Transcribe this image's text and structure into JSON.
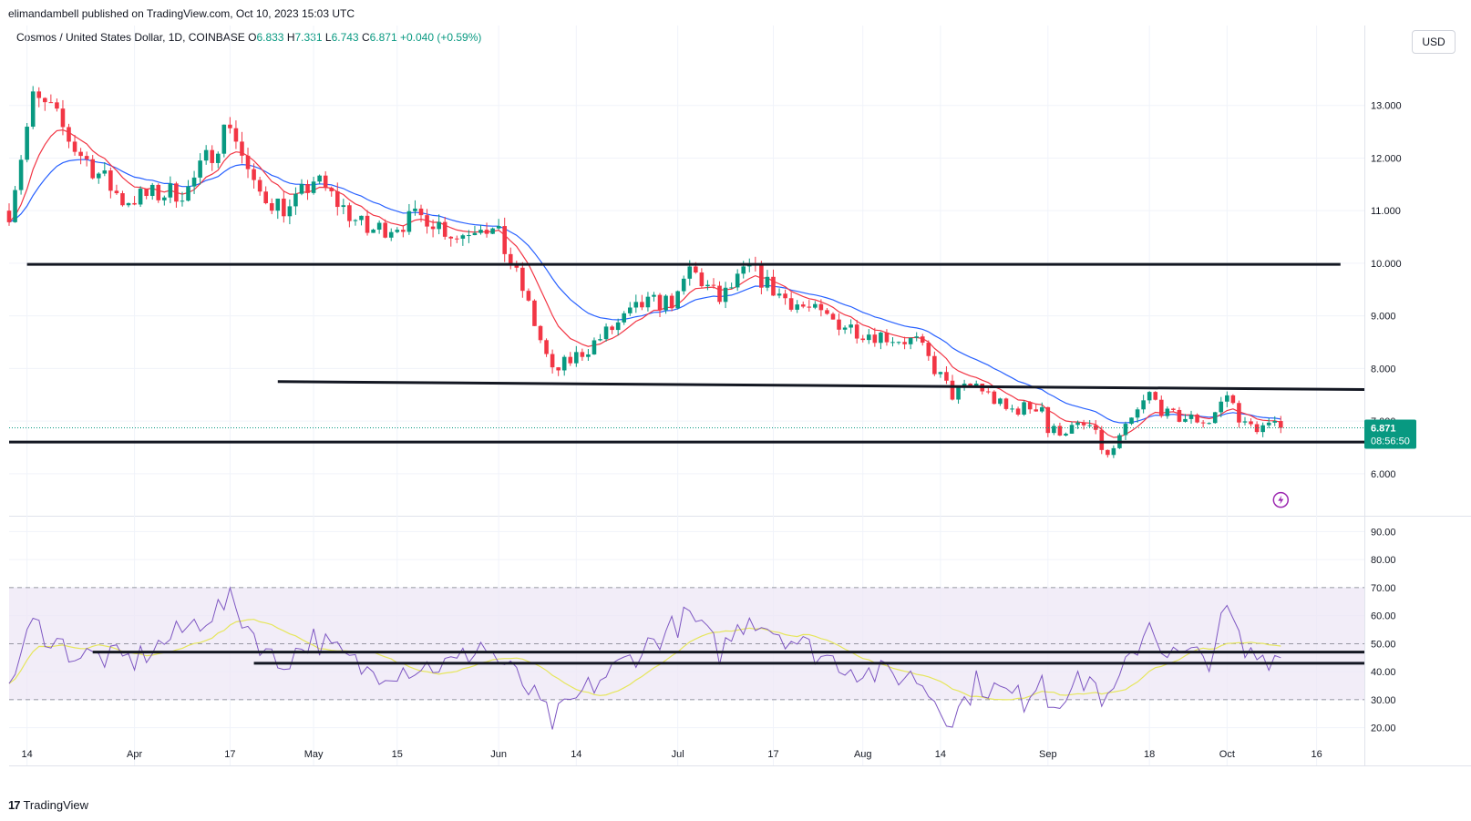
{
  "publisher_line": "elimandambell published on TradingView.com, Oct 10, 2023 15:03 UTC",
  "legend": {
    "symbol": "Cosmos / United States Dollar, 1D, COINBASE",
    "o_label": "O",
    "o": "6.833",
    "h_label": "H",
    "h": "7.331",
    "l_label": "L",
    "l": "6.743",
    "c_label": "C",
    "c": "6.871",
    "change": "+0.040 (+0.59%)"
  },
  "currency": "USD",
  "brand": {
    "icon": "17",
    "name": "TradingView"
  },
  "price_badge": {
    "price": "6.871",
    "countdown": "08:56:50"
  },
  "colors": {
    "up": "#089981",
    "down": "#f23645",
    "ema_fast": "#f23645",
    "ema_slow": "#2962ff",
    "rsi": "#7e57c2",
    "rsi_ma": "#e6e65c",
    "rsi_band": "#ede7f6",
    "trendline": "#131722"
  },
  "chart_data": [
    {
      "type": "candlestick",
      "title": "Cosmos / United States Dollar, 1D, COINBASE",
      "ylim": [
        5.2,
        14.0
      ],
      "y_ticks": [
        "13.000",
        "12.000",
        "11.000",
        "10.000",
        "9.000",
        "8.000",
        "7.000",
        "6.000"
      ],
      "x_ticks": [
        "14",
        "Apr",
        "17",
        "May",
        "15",
        "Jun",
        "14",
        "Jul",
        "17",
        "Aug",
        "14",
        "Sep",
        "18",
        "Oct",
        "16"
      ],
      "x_tick_dates": [
        "2023-03-14",
        "2023-04-01",
        "2023-04-17",
        "2023-05-01",
        "2023-05-15",
        "2023-06-01",
        "2023-06-14",
        "2023-07-01",
        "2023-07-17",
        "2023-08-01",
        "2023-08-14",
        "2023-09-01",
        "2023-09-18",
        "2023-10-01",
        "2023-10-16"
      ],
      "x_range": [
        "2023-03-11",
        "2023-10-24"
      ],
      "current_close": 6.871,
      "key_closes": [
        {
          "date": "2023-03-11",
          "close": 11.0
        },
        {
          "date": "2023-03-15",
          "close": 13.1
        },
        {
          "date": "2023-03-18",
          "close": 12.9
        },
        {
          "date": "2023-03-22",
          "close": 12.2
        },
        {
          "date": "2023-03-30",
          "close": 11.2
        },
        {
          "date": "2023-04-10",
          "close": 11.4
        },
        {
          "date": "2023-04-17",
          "close": 12.7
        },
        {
          "date": "2023-04-21",
          "close": 11.4
        },
        {
          "date": "2023-04-27",
          "close": 11.0
        },
        {
          "date": "2023-05-01",
          "close": 11.6
        },
        {
          "date": "2023-05-10",
          "close": 10.6
        },
        {
          "date": "2023-05-20",
          "close": 10.9
        },
        {
          "date": "2023-05-25",
          "close": 10.5
        },
        {
          "date": "2023-05-29",
          "close": 10.8
        },
        {
          "date": "2023-06-01",
          "close": 10.5
        },
        {
          "date": "2023-06-05",
          "close": 9.5
        },
        {
          "date": "2023-06-10",
          "close": 7.9
        },
        {
          "date": "2023-06-16",
          "close": 8.4
        },
        {
          "date": "2023-06-25",
          "close": 9.2
        },
        {
          "date": "2023-07-01",
          "close": 9.3
        },
        {
          "date": "2023-07-03",
          "close": 9.9
        },
        {
          "date": "2023-07-08",
          "close": 9.3
        },
        {
          "date": "2023-07-13",
          "close": 9.9
        },
        {
          "date": "2023-07-18",
          "close": 9.4
        },
        {
          "date": "2023-07-25",
          "close": 9.0
        },
        {
          "date": "2023-08-01",
          "close": 8.7
        },
        {
          "date": "2023-08-10",
          "close": 8.5
        },
        {
          "date": "2023-08-16",
          "close": 7.5
        },
        {
          "date": "2023-08-20",
          "close": 7.7
        },
        {
          "date": "2023-08-25",
          "close": 7.2
        },
        {
          "date": "2023-08-31",
          "close": 7.3
        },
        {
          "date": "2023-09-01",
          "close": 6.8
        },
        {
          "date": "2023-09-08",
          "close": 6.9
        },
        {
          "date": "2023-09-11",
          "close": 6.3
        },
        {
          "date": "2023-09-15",
          "close": 7.0
        },
        {
          "date": "2023-09-18",
          "close": 7.5
        },
        {
          "date": "2023-09-21",
          "close": 7.1
        },
        {
          "date": "2023-09-28",
          "close": 7.0
        },
        {
          "date": "2023-10-01",
          "close": 7.5
        },
        {
          "date": "2023-10-04",
          "close": 6.9
        },
        {
          "date": "2023-10-10",
          "close": 6.871
        }
      ],
      "horizontal_lines": [
        {
          "from": "2023-03-14",
          "to": "2023-10-20",
          "value": 9.98
        },
        {
          "from": "2023-04-25",
          "to": "2023-10-24",
          "start": 7.75,
          "end": 7.6
        },
        {
          "from": "2023-03-11",
          "to": "2023-10-24",
          "value": 6.6
        }
      ]
    },
    {
      "type": "line",
      "title": "RSI",
      "ylim": [
        15,
        95
      ],
      "y_ticks": [
        "90.00",
        "80.00",
        "70.00",
        "60.00",
        "50.00",
        "40.00",
        "30.00",
        "20.00"
      ],
      "band": [
        30,
        70
      ],
      "key_values": [
        {
          "date": "2023-03-11",
          "rsi": 36
        },
        {
          "date": "2023-03-15",
          "rsi": 57
        },
        {
          "date": "2023-03-22",
          "rsi": 46
        },
        {
          "date": "2023-04-01",
          "rsi": 44
        },
        {
          "date": "2023-04-17",
          "rsi": 65
        },
        {
          "date": "2023-04-25",
          "rsi": 42
        },
        {
          "date": "2023-05-01",
          "rsi": 52
        },
        {
          "date": "2023-05-10",
          "rsi": 40
        },
        {
          "date": "2023-05-25",
          "rsi": 43
        },
        {
          "date": "2023-05-29",
          "rsi": 50
        },
        {
          "date": "2023-06-05",
          "rsi": 36
        },
        {
          "date": "2023-06-10",
          "rsi": 22
        },
        {
          "date": "2023-06-16",
          "rsi": 34
        },
        {
          "date": "2023-06-25",
          "rsi": 48
        },
        {
          "date": "2023-07-03",
          "rsi": 60
        },
        {
          "date": "2023-07-08",
          "rsi": 47
        },
        {
          "date": "2023-07-13",
          "rsi": 60
        },
        {
          "date": "2023-07-25",
          "rsi": 46
        },
        {
          "date": "2023-08-01",
          "rsi": 40
        },
        {
          "date": "2023-08-10",
          "rsi": 38
        },
        {
          "date": "2023-08-16",
          "rsi": 23
        },
        {
          "date": "2023-08-20",
          "rsi": 36
        },
        {
          "date": "2023-08-28",
          "rsi": 30
        },
        {
          "date": "2023-08-31",
          "rsi": 40
        },
        {
          "date": "2023-09-01",
          "rsi": 29
        },
        {
          "date": "2023-09-08",
          "rsi": 38
        },
        {
          "date": "2023-09-11",
          "rsi": 28
        },
        {
          "date": "2023-09-18",
          "rsi": 58
        },
        {
          "date": "2023-09-21",
          "rsi": 46
        },
        {
          "date": "2023-09-28",
          "rsi": 45
        },
        {
          "date": "2023-10-01",
          "rsi": 62
        },
        {
          "date": "2023-10-04",
          "rsi": 46
        },
        {
          "date": "2023-10-10",
          "rsi": 45
        }
      ],
      "horizontal_lines": [
        {
          "from": "2023-03-25",
          "to": "2023-10-24",
          "value": 47
        },
        {
          "from": "2023-04-21",
          "to": "2023-10-24",
          "value": 43
        }
      ]
    }
  ]
}
